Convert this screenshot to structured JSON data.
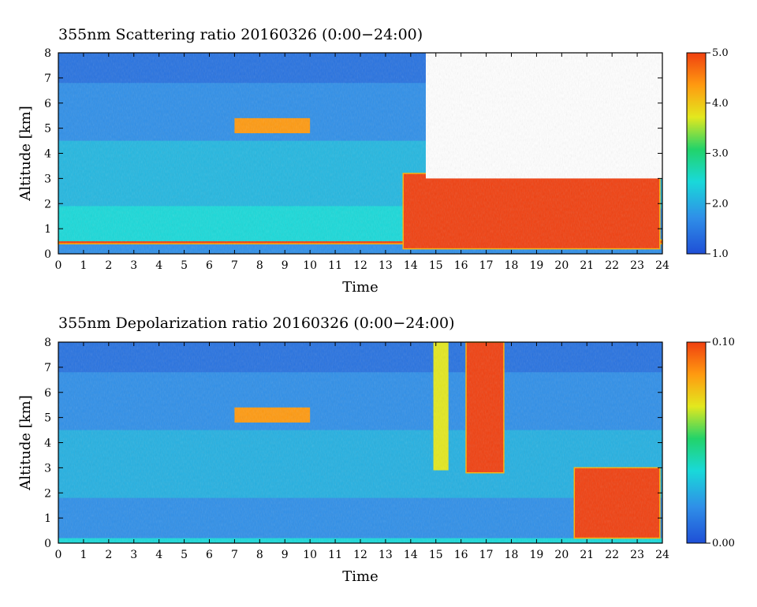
{
  "chart_data": [
    {
      "type": "heatmap",
      "title": "355nm Scattering ratio  20160326 (0:00−24:00)",
      "xlabel": "Time",
      "ylabel": "Altitude [km]",
      "xlim": [
        0,
        24
      ],
      "ylim": [
        0,
        8
      ],
      "x_ticks": [
        "0",
        "1",
        "2",
        "3",
        "4",
        "5",
        "6",
        "7",
        "8",
        "9",
        "10",
        "11",
        "12",
        "13",
        "14",
        "15",
        "16",
        "17",
        "18",
        "19",
        "20",
        "21",
        "22",
        "23",
        "24"
      ],
      "y_ticks": [
        "0",
        "1",
        "2",
        "3",
        "4",
        "5",
        "6",
        "7",
        "8"
      ],
      "colorbar": {
        "min": 1.0,
        "max": 5.0,
        "ticks": [
          "1.0",
          "2.0",
          "3.0",
          "4.0",
          "5.0"
        ]
      },
      "colormap": [
        "#1f4fd6",
        "#2f8fe8",
        "#19d9d9",
        "#22d36a",
        "#e3e81e",
        "#ff9a10",
        "#f04010"
      ],
      "features": [
        {
          "label": "near-surface layer",
          "x": [
            0,
            24
          ],
          "y": [
            0.4,
            0.55
          ],
          "value": 5.0
        },
        {
          "label": "aerosol layer",
          "x": [
            0,
            21
          ],
          "y": [
            0.5,
            1.9
          ],
          "value": 2.6
        },
        {
          "label": "cloud patches",
          "x": [
            7.0,
            10.0
          ],
          "y": [
            4.8,
            5.4
          ],
          "value": 4.5
        },
        {
          "label": "low cloud (saturated)",
          "x": [
            13.7,
            23.9
          ],
          "y": [
            0.2,
            3.2
          ],
          "value": 5.0
        },
        {
          "label": "no data",
          "x": [
            14.6,
            24
          ],
          "y": [
            3.0,
            8.0
          ],
          "value": null
        }
      ]
    },
    {
      "type": "heatmap",
      "title": "355nm Depolarization ratio  20160326 (0:00−24:00)",
      "xlabel": "Time",
      "ylabel": "Altitude [km]",
      "xlim": [
        0,
        24
      ],
      "ylim": [
        0,
        8
      ],
      "x_ticks": [
        "0",
        "1",
        "2",
        "3",
        "4",
        "5",
        "6",
        "7",
        "8",
        "9",
        "10",
        "11",
        "12",
        "13",
        "14",
        "15",
        "16",
        "17",
        "18",
        "19",
        "20",
        "21",
        "22",
        "23",
        "24"
      ],
      "y_ticks": [
        "0",
        "1",
        "2",
        "3",
        "4",
        "5",
        "6",
        "7",
        "8"
      ],
      "colorbar": {
        "min": 0.0,
        "max": 0.1,
        "ticks": [
          "0.00",
          "0.10"
        ]
      },
      "colormap": [
        "#1f4fd6",
        "#2f8fe8",
        "#19d9d9",
        "#22d36a",
        "#e3e81e",
        "#ff9a10",
        "#f04010"
      ],
      "features": [
        {
          "label": "surface layer",
          "x": [
            0,
            24
          ],
          "y": [
            0.0,
            0.2
          ],
          "value": 0.04
        },
        {
          "label": "cloud patches",
          "x": [
            7.0,
            10.0
          ],
          "y": [
            4.8,
            5.4
          ],
          "value": 0.08
        },
        {
          "label": "ice cloud",
          "x": [
            16.2,
            17.7
          ],
          "y": [
            2.8,
            8.0
          ],
          "value": 0.1
        },
        {
          "label": "cloud patch",
          "x": [
            14.9,
            15.5
          ],
          "y": [
            2.9,
            8.0
          ],
          "value": 0.07
        },
        {
          "label": "low cloud",
          "x": [
            20.5,
            23.9
          ],
          "y": [
            0.2,
            3.0
          ],
          "value": 0.1
        }
      ]
    }
  ]
}
